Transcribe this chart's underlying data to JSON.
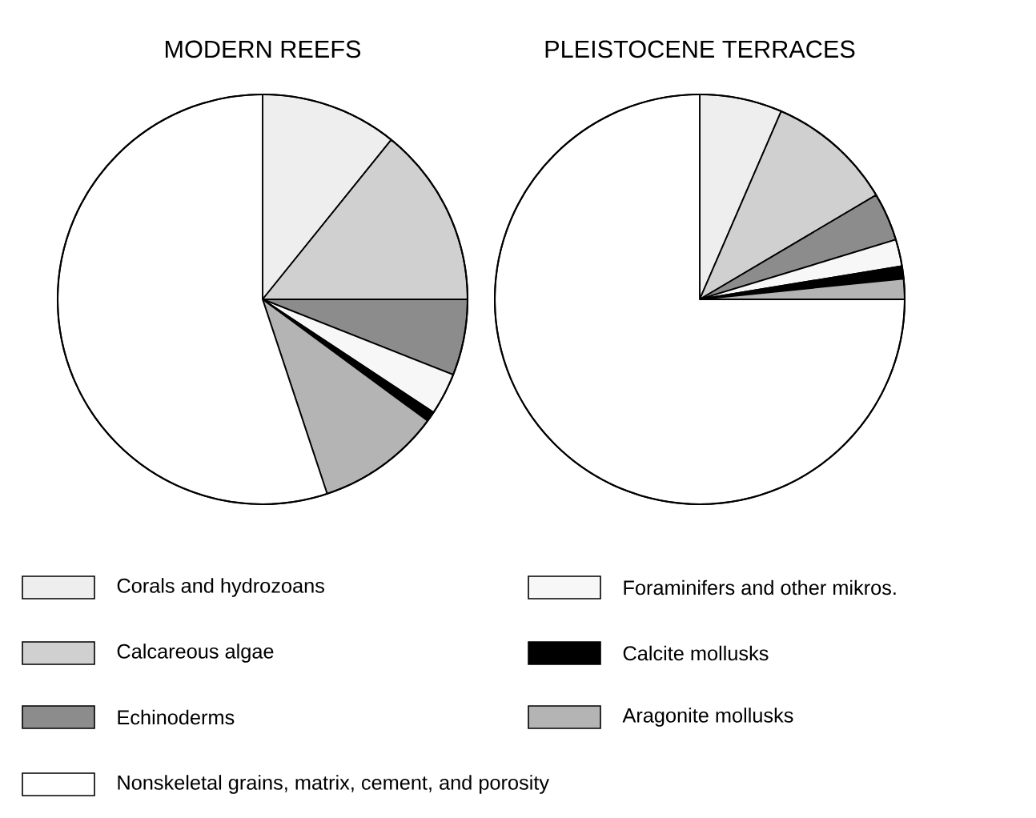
{
  "chart_data": {
    "type": "pie",
    "categories": [
      "Corals and hydrozoans",
      "Calcareous algae",
      "Echinoderms",
      "Foraminifers and other mikros.",
      "Calcite mollusks",
      "Aragonite mollusks",
      "Nonskeletal grains, matrix, cement, and porosity"
    ],
    "colors": [
      "#eeeeee",
      "#d0d0d0",
      "#8c8c8c",
      "#f7f7f7",
      "#000000",
      "#b4b4b4",
      "#ffffff"
    ],
    "series": [
      {
        "name": "MODERN REEFS",
        "values": [
          10.8,
          14.2,
          6,
          3.3,
          0.8,
          9.8,
          55.1
        ]
      },
      {
        "name": "PLEISTOCENE TERRACES",
        "values": [
          6.5,
          10,
          3.8,
          2.1,
          1,
          1.6,
          75
        ]
      }
    ],
    "legend": "bottom"
  }
}
